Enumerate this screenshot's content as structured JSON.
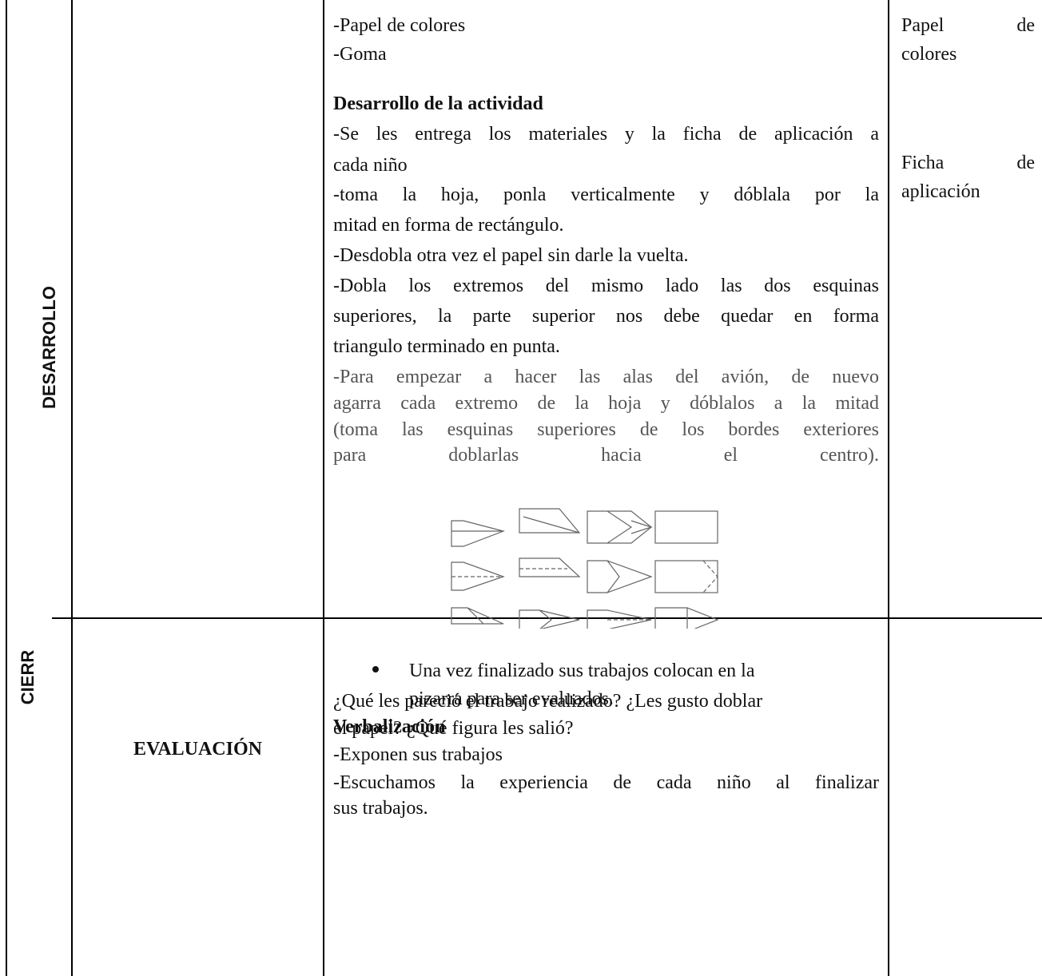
{
  "table": {
    "rows": [
      {
        "section": "DESARROLLO",
        "materials": [
          "-Papel de colores",
          "-Goma"
        ],
        "activity_heading": "Desarrollo de la actividad",
        "steps": [
          [
            "-Se les entrega los materiales y la ficha de aplicación a",
            "cada niño"
          ],
          [
            "-toma la hoja, ponla verticalmente y dóblala por la",
            "mitad en forma de rectángulo."
          ],
          [
            "-Desdobla otra vez el papel sin darle la vuelta."
          ],
          [
            "-Dobla los extremos del mismo lado las dos esquinas",
            "superiores, la parte superior nos debe quedar en forma",
            "triangulo terminado en punta."
          ],
          [
            "-Para empezar a hacer las alas del avión, de nuevo",
            "agarra cada extremo de la hoja y dóblalos a la mitad",
            "(toma las esquinas superiores de los bordes exteriores",
            "para doblarlas hacia el centro)."
          ]
        ],
        "bullet": [
          "Una vez finalizado sus trabajos colocan en la",
          "pizarra para ser evaluados."
        ],
        "verbalization_heading": "Verbalización",
        "verbalization": [
          [
            "-Exponen sus trabajos"
          ],
          [
            "-Escuchamos la experiencia de cada niño al finalizar",
            "sus trabajos."
          ]
        ],
        "resources": [
          [
            "Papel de",
            "colores"
          ],
          [
            "Ficha de",
            "aplicación"
          ]
        ]
      },
      {
        "section": "CIERR",
        "stage": "EVALUACIÓN",
        "content": [
          "¿Qué les pareció el trabajo realizado? ¿Les gusto doblar",
          "el papel? ¿Qué figura les salió?"
        ]
      }
    ]
  }
}
